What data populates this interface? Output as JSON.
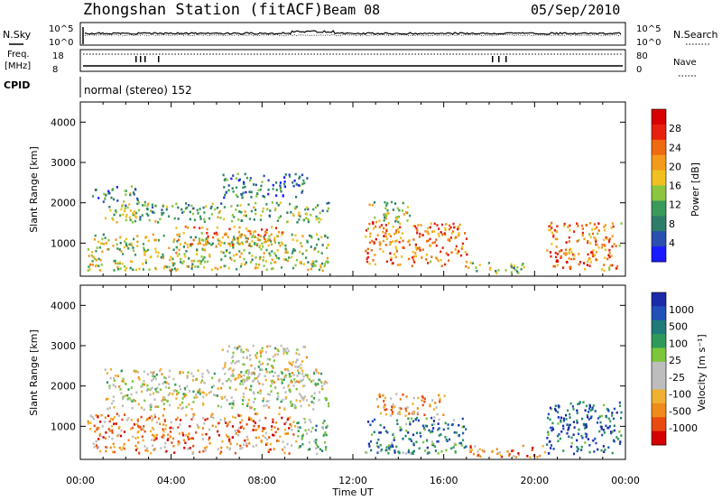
{
  "header": {
    "station": "Zhongshan Station (fitACF)",
    "beam": "Beam 08",
    "date": "05/Sep/2010"
  },
  "params": {
    "nsky_label": "N.Sky",
    "nsearch_label": "N.Search",
    "nsky_ticks": [
      "10^5",
      "10^0"
    ],
    "nsearch_ticks": [
      "10^5",
      "10^0"
    ],
    "freq_label_1": "Freq.",
    "freq_label_2": "[MHz]",
    "freq_ticks": [
      "18",
      "8"
    ],
    "nave_label": "Nave",
    "nave_ticks": [
      "80",
      "0"
    ],
    "cpid_label": "CPID",
    "cpid_text": "normal (stereo) 152"
  },
  "colors": {
    "power_scale": [
      "#1a1aff",
      "#2a4fb0",
      "#2e7d6a",
      "#3a9a5a",
      "#8cc63f",
      "#f0c020",
      "#f39a1a",
      "#f06a10",
      "#e82010",
      "#d80000"
    ],
    "velocity_scale": [
      "#d40000",
      "#e84a10",
      "#f08a1a",
      "#f0b030",
      "#bdbdbd",
      "#bdbdbd",
      "#7dc63a",
      "#2e9a5a",
      "#1f7a7a",
      "#2050b8",
      "#1a2aa8"
    ]
  },
  "chart_data": [
    {
      "type": "heatmap",
      "title": "Power",
      "xlabel": "Time UT",
      "ylabel": "Slant Range [km]",
      "xlim": [
        0,
        24
      ],
      "ylim": [
        180,
        4500
      ],
      "xticks": [
        "00:00",
        "04:00",
        "08:00",
        "12:00",
        "16:00",
        "20:00",
        "00:00"
      ],
      "yticks": [
        "1000",
        "2000",
        "3000",
        "4000"
      ],
      "colorbar": {
        "label": "Power [dB]",
        "ticks": [
          "28",
          "24",
          "20",
          "16",
          "12",
          "8",
          "4"
        ]
      },
      "regions": [
        {
          "t0": 0.3,
          "t1": 10.9,
          "r0": 300,
          "r1": 1200,
          "level": 0.48
        },
        {
          "t0": 4.0,
          "t1": 9.0,
          "r0": 900,
          "r1": 1400,
          "level": 0.66
        },
        {
          "t0": 1.0,
          "t1": 10.9,
          "r0": 1500,
          "r1": 2000,
          "level": 0.4
        },
        {
          "t0": 0.5,
          "t1": 2.5,
          "r0": 2000,
          "r1": 2400,
          "level": 0.3
        },
        {
          "t0": 6.2,
          "t1": 10.0,
          "r0": 2100,
          "r1": 2700,
          "level": 0.24
        },
        {
          "t0": 12.5,
          "t1": 17.0,
          "r0": 400,
          "r1": 1500,
          "level": 0.72
        },
        {
          "t0": 12.5,
          "t1": 14.5,
          "r0": 1500,
          "r1": 2000,
          "level": 0.45
        },
        {
          "t0": 20.5,
          "t1": 23.8,
          "r0": 300,
          "r1": 1500,
          "level": 0.7
        },
        {
          "t0": 17.0,
          "t1": 19.5,
          "r0": 200,
          "r1": 500,
          "level": 0.4
        }
      ]
    },
    {
      "type": "heatmap",
      "title": "Velocity",
      "xlabel": "Time UT",
      "ylabel": "Slant Range [km]",
      "xlim": [
        0,
        24
      ],
      "ylim": [
        180,
        4500
      ],
      "xticks": [
        "00:00",
        "04:00",
        "08:00",
        "12:00",
        "16:00",
        "20:00",
        "00:00"
      ],
      "yticks": [
        "1000",
        "2000",
        "3000",
        "4000"
      ],
      "colorbar": {
        "label": "Velocity [m s⁻¹]",
        "ticks": [
          "1000",
          "500",
          "100",
          "25",
          "-25",
          "-100",
          "-500",
          "-1000"
        ]
      },
      "regions": [
        {
          "t0": 0.3,
          "t1": 9.5,
          "r0": 300,
          "r1": 1300,
          "level": 0.25
        },
        {
          "t0": 9.5,
          "t1": 10.9,
          "r0": 300,
          "r1": 1200,
          "level": 0.62
        },
        {
          "t0": 1.0,
          "t1": 10.9,
          "r0": 1400,
          "r1": 2400,
          "level": 0.45
        },
        {
          "t0": 6.2,
          "t1": 10.0,
          "r0": 2100,
          "r1": 3000,
          "level": 0.45
        },
        {
          "t0": 12.5,
          "t1": 17.0,
          "r0": 300,
          "r1": 1200,
          "level": 0.74
        },
        {
          "t0": 13.0,
          "t1": 16.0,
          "r0": 1200,
          "r1": 1800,
          "level": 0.3
        },
        {
          "t0": 17.0,
          "t1": 20.5,
          "r0": 200,
          "r1": 500,
          "level": 0.2
        },
        {
          "t0": 20.5,
          "t1": 23.8,
          "r0": 300,
          "r1": 1600,
          "level": 0.85
        }
      ]
    }
  ]
}
